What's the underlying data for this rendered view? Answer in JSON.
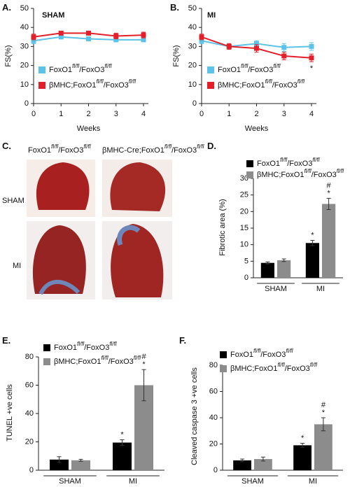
{
  "chart_data": [
    {
      "type": "line",
      "label": "A.",
      "title": "SHAM",
      "x_label": "Weeks",
      "y_label": "FS(%)",
      "x": [
        0,
        1,
        2,
        3,
        4
      ],
      "xlim": [
        0,
        4
      ],
      "xticks": [
        0,
        1,
        2,
        3,
        4
      ],
      "ylim": [
        0,
        50
      ],
      "yticks": [
        0,
        10,
        20,
        30,
        40,
        50
      ],
      "series": [
        {
          "name": "FoxO1fl/fl/FoxO3fl/fl",
          "color": "#5bc3ea",
          "values": [
            33,
            35,
            34,
            33.5,
            33.5
          ],
          "errors": [
            1.5,
            1,
            0.8,
            1,
            1
          ]
        },
        {
          "name": "βMHC;FoxO1fl/fl/FoxO3fl/fl",
          "color": "#e3202a",
          "values": [
            35,
            37,
            37,
            35.5,
            36
          ],
          "errors": [
            1.5,
            1,
            1,
            1.5,
            1.5
          ]
        }
      ]
    },
    {
      "type": "line",
      "label": "B.",
      "title": "MI",
      "x_label": "Weeks",
      "y_label": "FS(%)",
      "x": [
        0,
        1,
        2,
        3,
        4
      ],
      "xlim": [
        0,
        4
      ],
      "xticks": [
        0,
        1,
        2,
        3,
        4
      ],
      "ylim": [
        0,
        50
      ],
      "yticks": [
        0,
        10,
        20,
        30,
        40,
        50
      ],
      "series": [
        {
          "name": "FoxO1fl/fl/FoxO3fl/fl",
          "color": "#5bc3ea",
          "values": [
            33,
            30,
            31.5,
            29.5,
            30
          ],
          "errors": [
            1.5,
            1.5,
            1.5,
            2,
            2
          ]
        },
        {
          "name": "βMHC;FoxO1fl/fl/FoxO3fl/fl",
          "color": "#e3202a",
          "values": [
            35,
            30,
            29,
            25,
            24
          ],
          "errors": [
            1.5,
            1.5,
            2,
            2,
            2
          ],
          "annotations": [
            null,
            null,
            null,
            null,
            "*"
          ]
        }
      ]
    },
    {
      "type": "bar",
      "label": "D.",
      "y_label": "Fibrotic area (%)",
      "categories": [
        "SHAM",
        "MI"
      ],
      "ylim": [
        0,
        30
      ],
      "yticks": [
        0,
        5,
        10,
        15,
        20,
        25,
        30
      ],
      "series": [
        {
          "name": "FoxO1fl/fl/FoxO3fl/fl",
          "color": "#000000",
          "values": [
            4.5,
            10.5
          ],
          "errors": [
            0.3,
            0.8
          ],
          "annotations": [
            null,
            [
              "*"
            ]
          ]
        },
        {
          "name": "βMHC;FoxO1fl/fl/FoxO3fl/fl",
          "color": "#8c8c8c",
          "values": [
            5.3,
            22.3
          ],
          "errors": [
            0.4,
            1.7
          ],
          "annotations": [
            null,
            [
              "#",
              "*"
            ]
          ]
        }
      ]
    },
    {
      "type": "bar",
      "label": "E.",
      "y_label": "TUNEL +ve cells",
      "categories": [
        "SHAM",
        "MI"
      ],
      "ylim": [
        0,
        80
      ],
      "yticks": [
        0,
        20,
        40,
        60,
        80
      ],
      "series": [
        {
          "name": "FoxO1fl/fl/FoxO3fl/fl",
          "color": "#000000",
          "values": [
            7.5,
            19.5
          ],
          "errors": [
            2,
            2
          ],
          "annotations": [
            null,
            [
              "*"
            ]
          ]
        },
        {
          "name": "βMHC;FoxO1fl/fl/FoxO3fl/fl",
          "color": "#8c8c8c",
          "values": [
            7,
            60
          ],
          "errors": [
            0.7,
            11
          ],
          "annotations": [
            null,
            [
              "#",
              "*"
            ]
          ]
        }
      ]
    },
    {
      "type": "bar",
      "label": "F.",
      "y_label": "Cleaved caspase 3 +ve cells",
      "categories": [
        "SHAM",
        "MI"
      ],
      "ylim": [
        0,
        80
      ],
      "yticks": [
        0,
        20,
        40,
        60,
        80
      ],
      "series": [
        {
          "name": "FoxO1fl/fl/FoxO3fl/fl",
          "color": "#000000",
          "values": [
            7.5,
            19
          ],
          "errors": [
            1,
            1.5
          ],
          "annotations": [
            null,
            [
              "*"
            ]
          ]
        },
        {
          "name": "βMHC;FoxO1fl/fl/FoxO3fl/fl",
          "color": "#8c8c8c",
          "values": [
            8.5,
            35
          ],
          "errors": [
            1.5,
            5
          ],
          "annotations": [
            null,
            [
              "#",
              "*"
            ]
          ]
        }
      ]
    }
  ],
  "image_panel": {
    "label": "C.",
    "columns": [
      "FoxO1fl/fl/FoxO3fl/fl",
      "βMHC-Cre;FoxO1fl/fl/FoxO3fl/fl"
    ],
    "rows": [
      "SHAM",
      "MI"
    ]
  }
}
